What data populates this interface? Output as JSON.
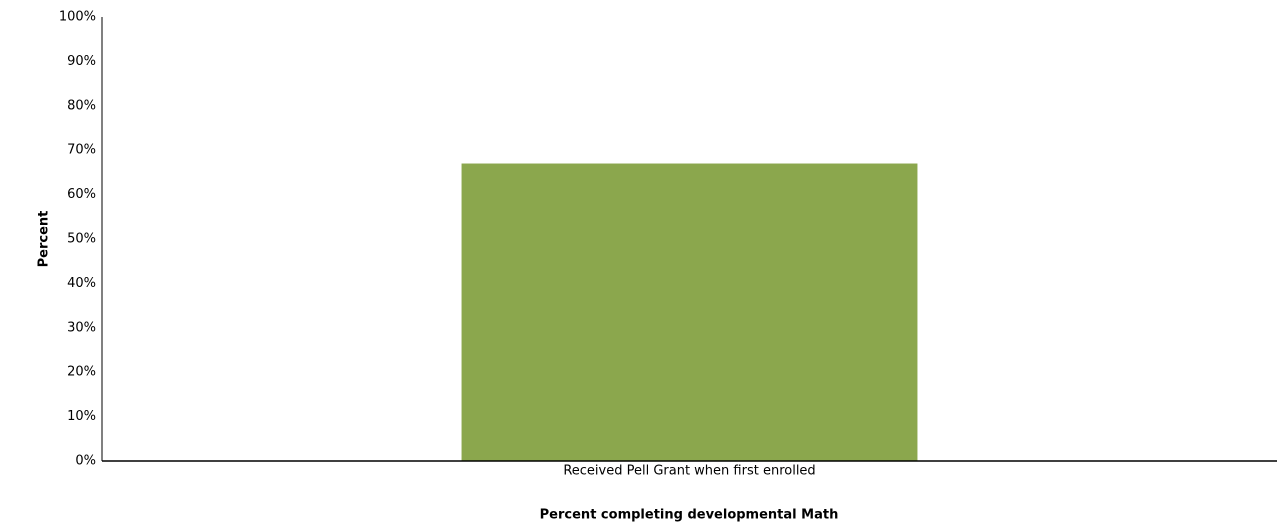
{
  "chart_data": {
    "type": "bar",
    "x_label": "Percent completing developmental Math",
    "y_label": "Percent",
    "categories": [
      "Received Pell Grant when first enrolled"
    ],
    "values": [
      67
    ],
    "color": "#8ba74d",
    "ylim": [
      0,
      100
    ],
    "yticks": [
      {
        "value": 0,
        "label": "0%"
      },
      {
        "value": 10,
        "label": "10%"
      },
      {
        "value": 20,
        "label": "20%"
      },
      {
        "value": 30,
        "label": "30%"
      },
      {
        "value": 40,
        "label": "40%"
      },
      {
        "value": 50,
        "label": "50%"
      },
      {
        "value": 60,
        "label": "60%"
      },
      {
        "value": 70,
        "label": "70%"
      },
      {
        "value": 80,
        "label": "80%"
      },
      {
        "value": 90,
        "label": "90%"
      },
      {
        "value": 100,
        "label": "100%"
      }
    ],
    "grid": false
  }
}
